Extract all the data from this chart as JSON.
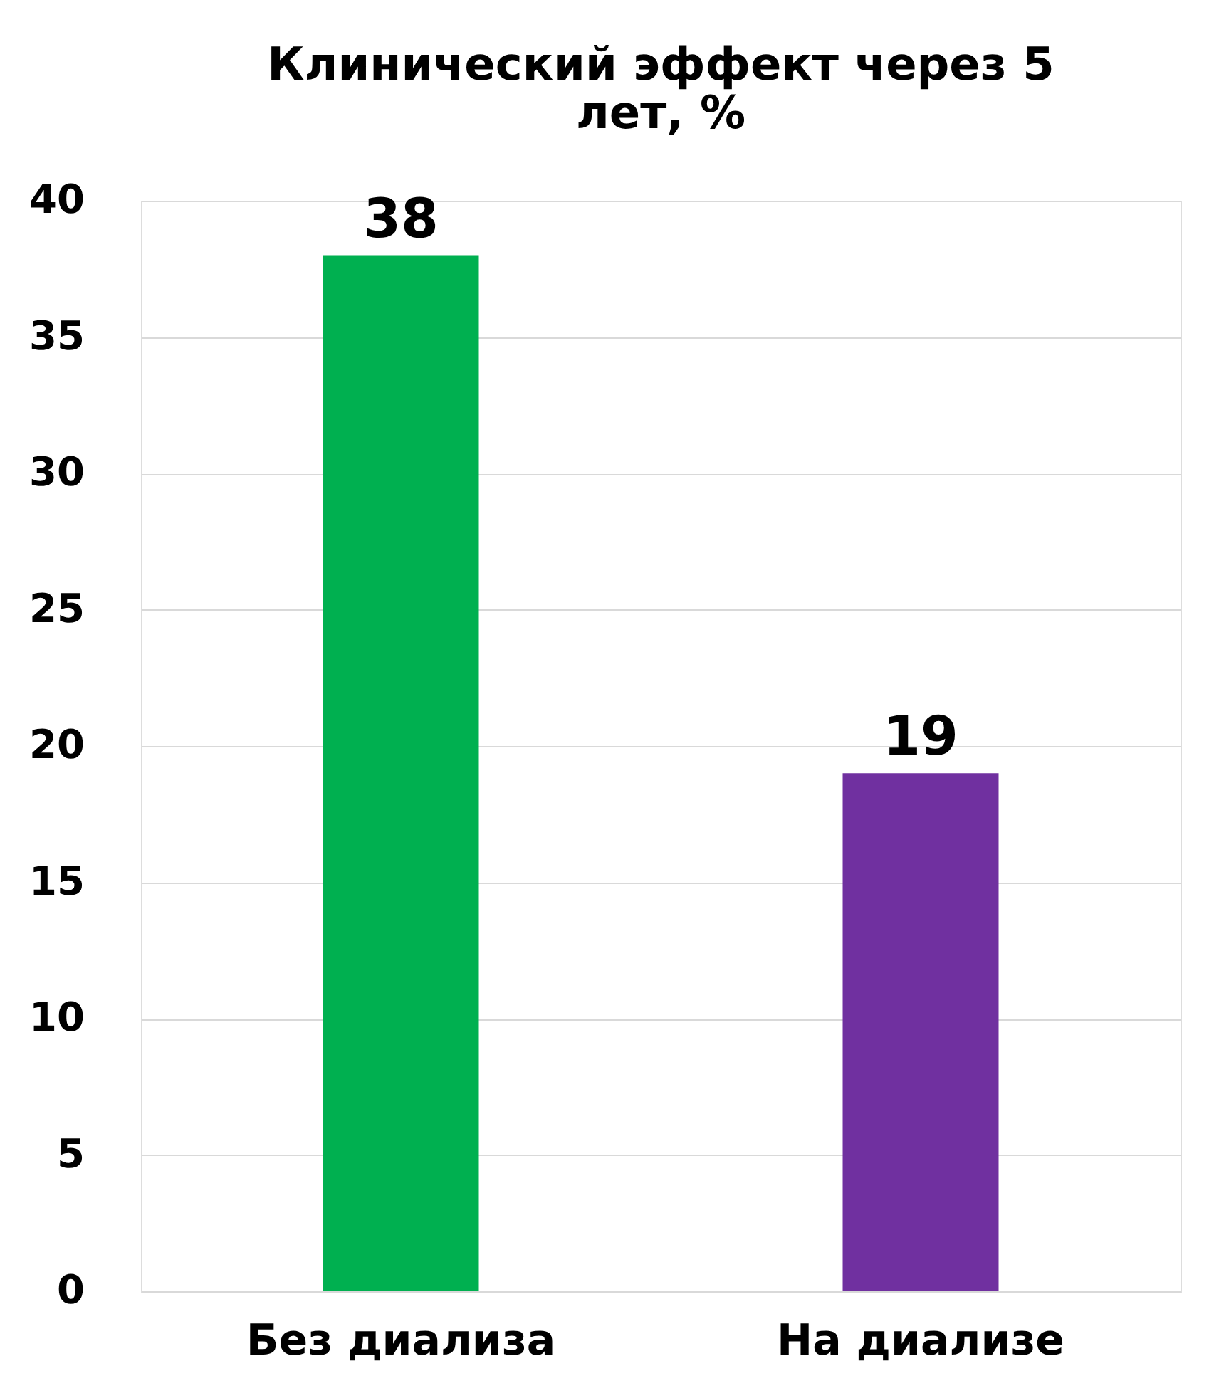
{
  "chart_data": {
    "type": "bar",
    "title": "Клинический эффект через 5 лет, %",
    "categories": [
      "Без диализа",
      "На диализе"
    ],
    "values": [
      38,
      19
    ],
    "colors": [
      "#00b050",
      "#7030a0"
    ],
    "ylim": [
      0,
      40
    ],
    "yticks": [
      0,
      5,
      10,
      15,
      20,
      25,
      30,
      35,
      40
    ],
    "grid": "y",
    "data_labels": true
  }
}
